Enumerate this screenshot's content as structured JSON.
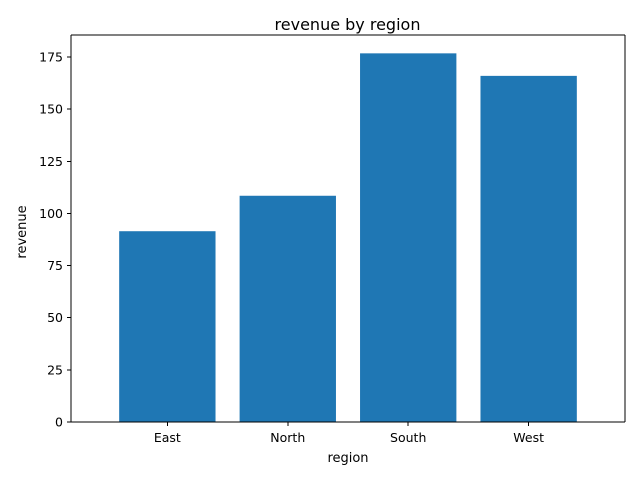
{
  "chart_data": {
    "type": "bar",
    "title": "revenue by region",
    "xlabel": "region",
    "ylabel": "revenue",
    "categories": [
      "East",
      "North",
      "South",
      "West"
    ],
    "values": [
      91.5,
      108.5,
      176.8,
      166.0
    ],
    "ylim": [
      0,
      185.6
    ],
    "yticks": [
      0,
      25,
      50,
      75,
      100,
      125,
      150,
      175
    ],
    "grid": false,
    "legend": "none",
    "bar_color": "#1f77b4"
  }
}
